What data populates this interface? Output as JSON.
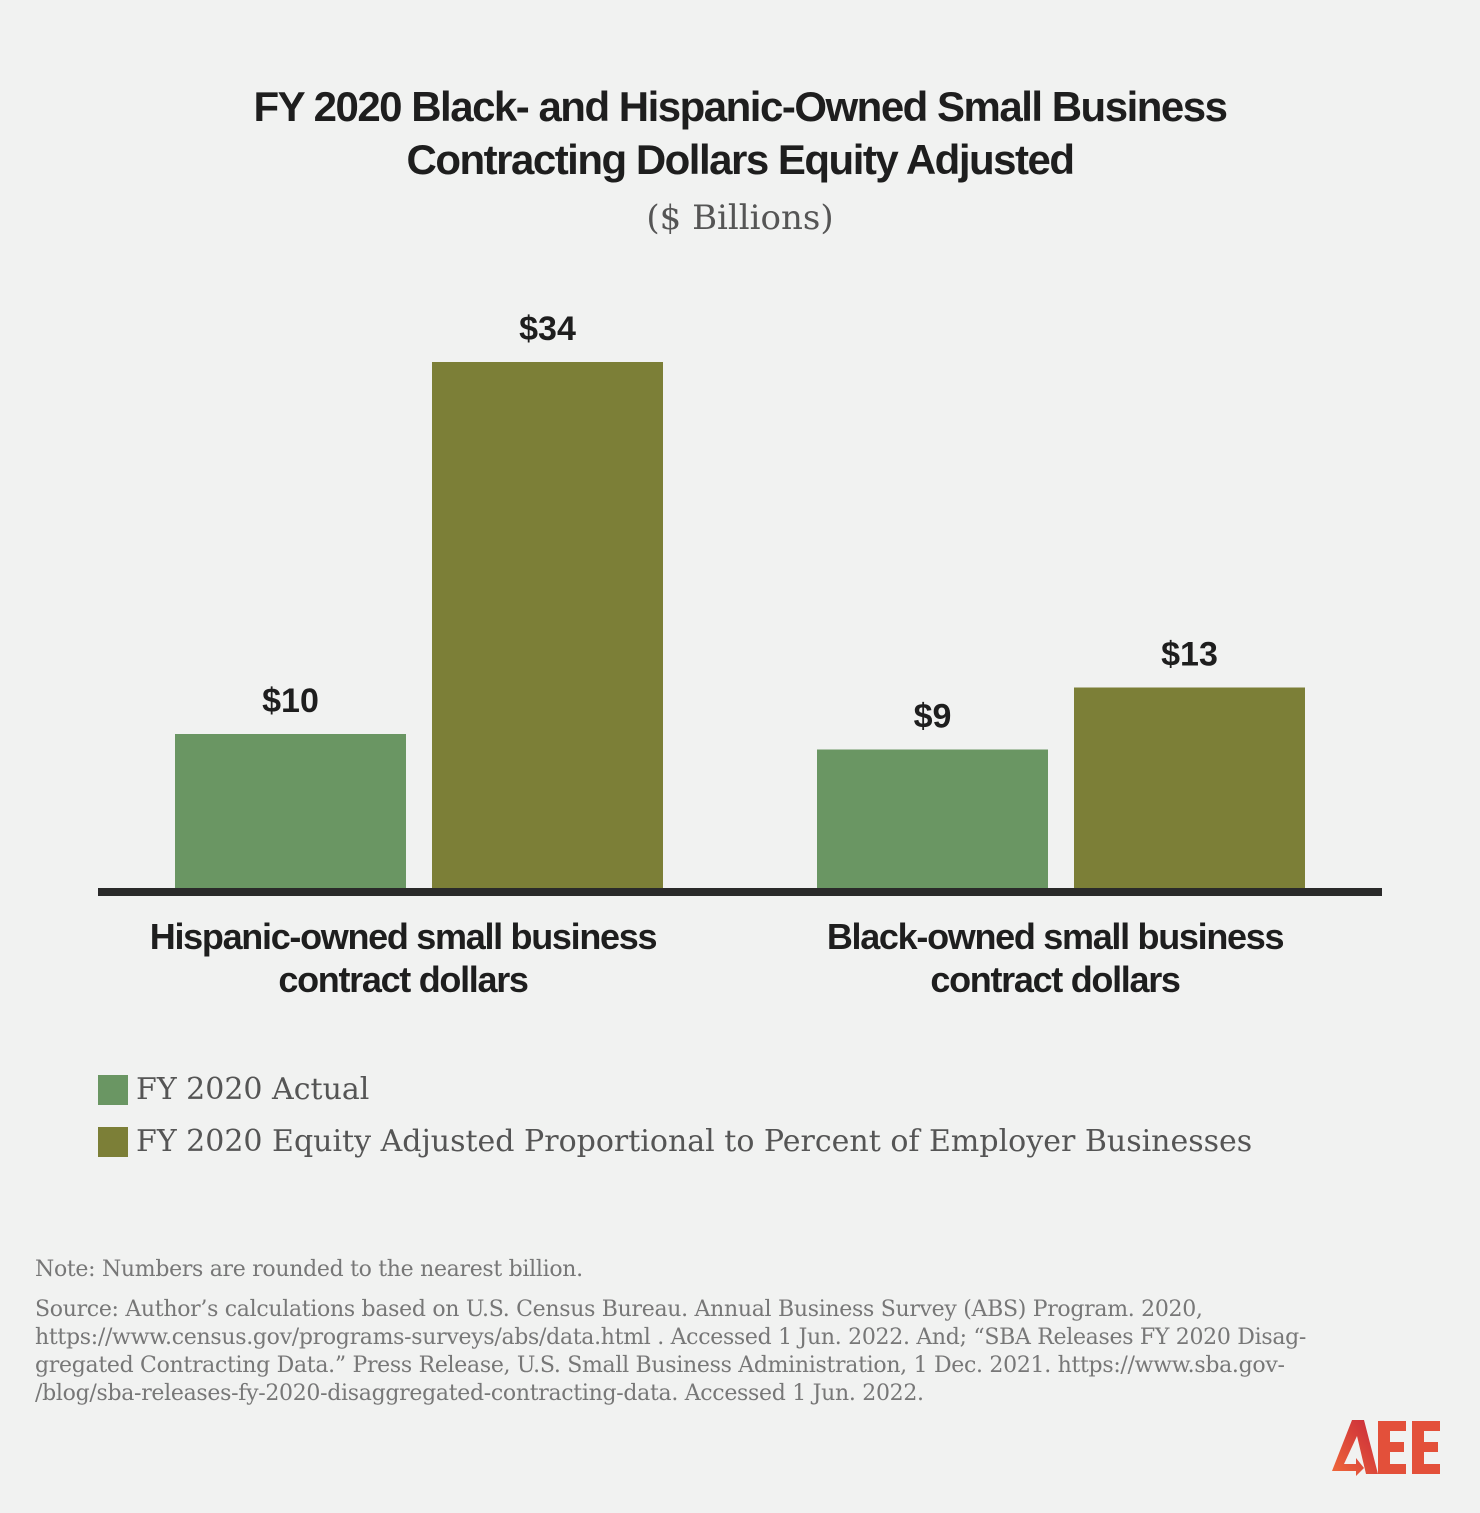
{
  "chart_data": {
    "type": "bar",
    "title": "FY 2020 Black- and Hispanic-Owned Small Business Contracting Dollars Equity Adjusted",
    "title_lines": [
      "FY 2020 Black- and Hispanic-Owned Small Business",
      "Contracting Dollars Equity Adjusted"
    ],
    "subtitle": "($ Billions)",
    "categories": [
      "Hispanic-owned small business contract dollars",
      "Black-owned small business contract dollars"
    ],
    "category_lines": [
      [
        "Hispanic-owned small business",
        "contract dollars"
      ],
      [
        "Black-owned small business",
        "contract dollars"
      ]
    ],
    "series": [
      {
        "name": "FY 2020 Actual",
        "values": [
          10,
          9
        ],
        "labels": [
          "$10",
          "$9"
        ],
        "color": "#6a9663"
      },
      {
        "name": "FY 2020 Equity Adjusted Proportional to Percent of Employer Businesses",
        "values": [
          34,
          13
        ],
        "labels": [
          "$34",
          "$13"
        ],
        "color": "#7c7f37"
      }
    ],
    "ylim": [
      0,
      34
    ],
    "grid": false,
    "legend_position": "bottom-left",
    "xlabel": "",
    "ylabel": ""
  },
  "note": "Note: Numbers are rounded to the nearest billion.",
  "source_lines": [
    "Source: Author’s calculations based on U.S. Census Bureau. Annual Business Survey (ABS) Program. 2020,",
    "https://www.census.gov/programs-surveys/abs/data.html . Accessed 1 Jun. 2022. And; “SBA Releases FY 2020 Disag-",
    "gregated Contracting Data.” Press Release, U.S. Small Business Administration, 1 Dec. 2021. https://www.sba.gov-",
    "/blog/sba-releases-fy-2020-disaggregated-contracting-data. Accessed 1 Jun. 2022."
  ],
  "logo": {
    "text": "AEE",
    "color": "#e0513a"
  }
}
